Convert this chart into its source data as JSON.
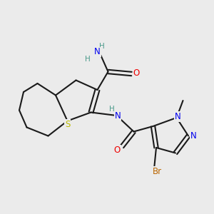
{
  "background_color": "#ebebeb",
  "atom_colors": {
    "C": "#1a1a1a",
    "H": "#4a9a8a",
    "N": "#0000ee",
    "O": "#ee0000",
    "S": "#bbbb00",
    "Br": "#bb6600"
  },
  "figsize": [
    3.0,
    3.0
  ],
  "dpi": 100,
  "lw": 1.5,
  "fontsize": 8.5
}
